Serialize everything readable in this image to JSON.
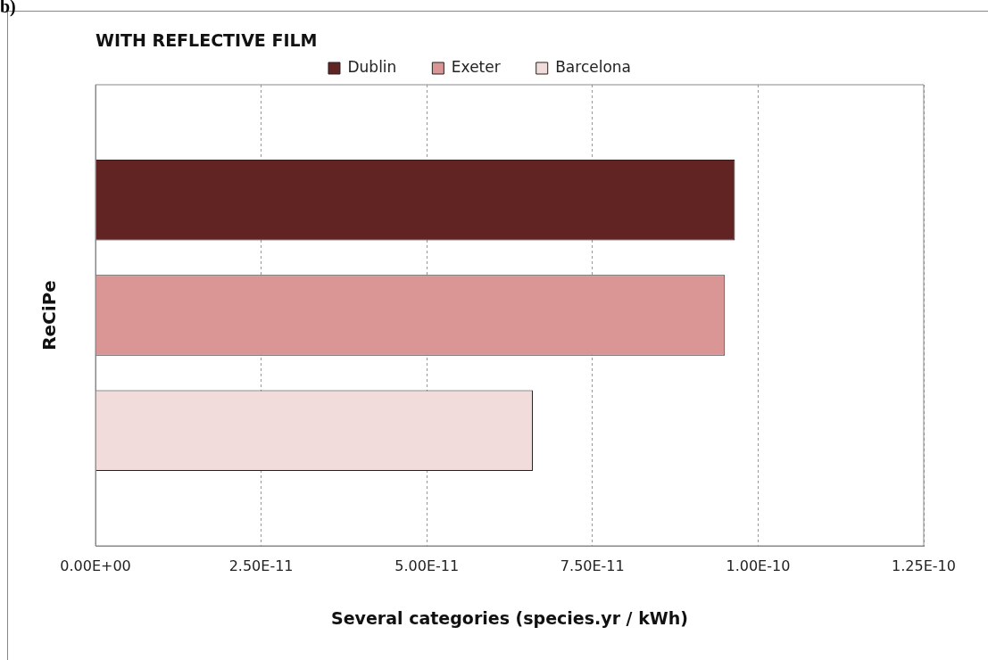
{
  "chart_data": {
    "type": "bar",
    "orientation": "horizontal",
    "title": "WITH REFLECTIVE FILM",
    "xlabel": "Several categories (species.yr / kWh)",
    "annotations": [
      "b)"
    ],
    "categories": [
      "ReCiPe"
    ],
    "series": [
      {
        "name": "Dublin",
        "color": "#622323",
        "values": [
          9.65e-11
        ]
      },
      {
        "name": "Exeter",
        "color": "#d99694",
        "values": [
          9.5e-11
        ]
      },
      {
        "name": "Barcelona",
        "color": "#f2dcdb",
        "values": [
          6.6e-11
        ]
      }
    ],
    "xlim": [
      0,
      1.25e-10
    ],
    "xticks": [
      {
        "value": 0,
        "label": "0.00E+00"
      },
      {
        "value": 2.5e-11,
        "label": "2.50E-11"
      },
      {
        "value": 5e-11,
        "label": "5.00E-11"
      },
      {
        "value": 7.5e-11,
        "label": "7.50E-11"
      },
      {
        "value": 1e-10,
        "label": "1.00E-10"
      },
      {
        "value": 1.25e-10,
        "label": "1.25E-10"
      }
    ],
    "grid": "x",
    "legend": "top"
  }
}
